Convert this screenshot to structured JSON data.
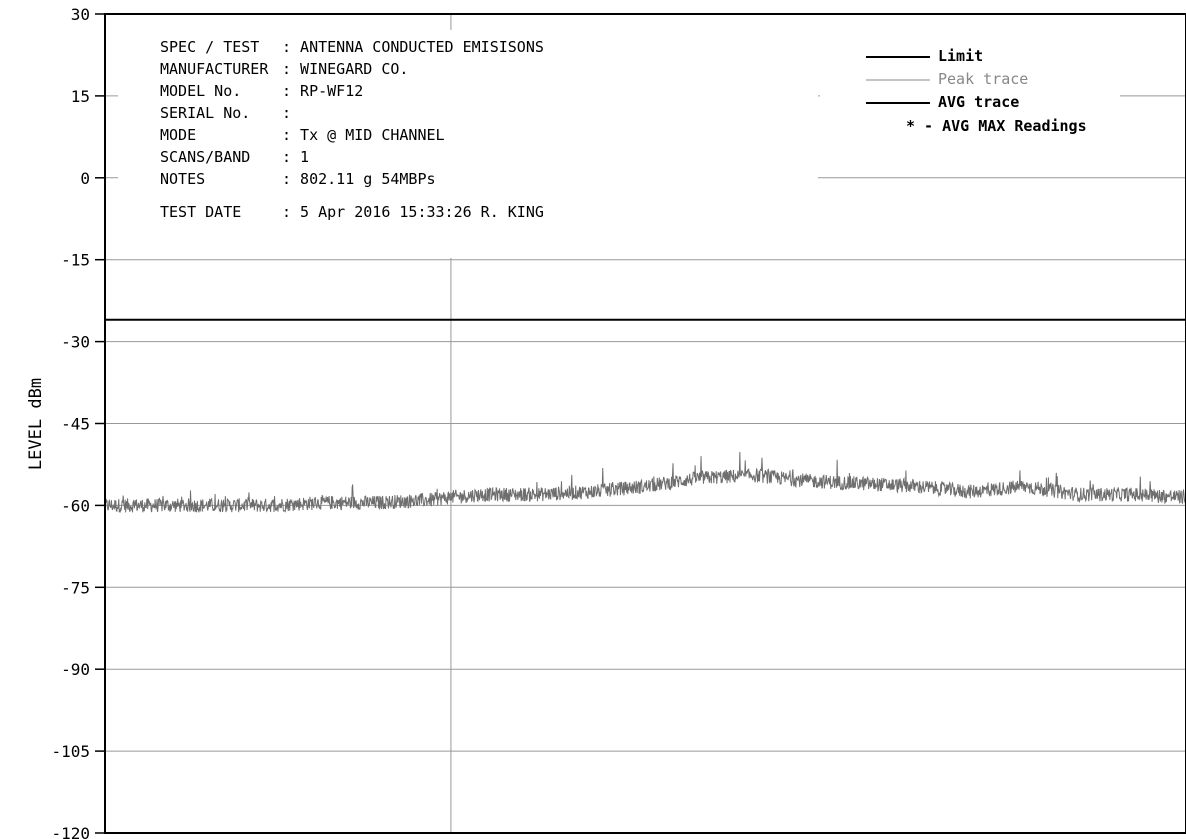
{
  "chart_data": {
    "type": "line",
    "ylabel": "LEVEL dBm",
    "xlabel": "",
    "ylim": [
      -120,
      30
    ],
    "yticks": [
      30,
      15,
      0,
      -15,
      -30,
      -45,
      -60,
      -75,
      -90,
      -105,
      -120
    ],
    "ytick_labels": [
      "30",
      "15",
      "0",
      "-15",
      "-30",
      "-45",
      "-60",
      "-75",
      "-90",
      "-105",
      "-120"
    ],
    "xlim": [
      0,
      100
    ],
    "grid": true,
    "legend_position": "top-right",
    "info_labels": [
      "SPEC / TEST",
      "MANUFACTURER",
      "MODEL No.",
      "SERIAL No.",
      "MODE",
      "SCANS/BAND",
      "NOTES",
      "TEST DATE"
    ],
    "info_values": [
      ": ANTENNA CONDUCTED EMISISONS",
      ": WINEGARD CO.",
      ": RP-WF12",
      ":",
      ": Tx @ MID CHANNEL",
      ": 1",
      ": 802.11 g 54MBPs",
      ":  5 Apr 2016 15:33:26  R. KING"
    ],
    "legend": [
      {
        "label": "Limit",
        "color": "#000000"
      },
      {
        "label": "Peak trace",
        "color": "#888888"
      },
      {
        "label": "AVG trace",
        "color": "#000000"
      },
      {
        "label": "* - AVG MAX Readings",
        "color": "#000000"
      }
    ],
    "series": [
      {
        "name": "Limit",
        "color": "#000000",
        "x": [
          0,
          100
        ],
        "y": [
          -26,
          -26
        ]
      },
      {
        "name": "Peak trace",
        "color": "#6e6e6e",
        "x": [
          0,
          5,
          10,
          15,
          20,
          25,
          30,
          32,
          35,
          40,
          45,
          50,
          55,
          60,
          65,
          70,
          75,
          80,
          85,
          90,
          95,
          100
        ],
        "y": [
          -60,
          -60,
          -60,
          -60,
          -59.5,
          -59.5,
          -59,
          -58.5,
          -58,
          -58,
          -57.5,
          -56.5,
          -55,
          -54.5,
          -55.5,
          -56,
          -56.5,
          -57.5,
          -56.5,
          -58,
          -58,
          -58.5
        ]
      }
    ]
  }
}
